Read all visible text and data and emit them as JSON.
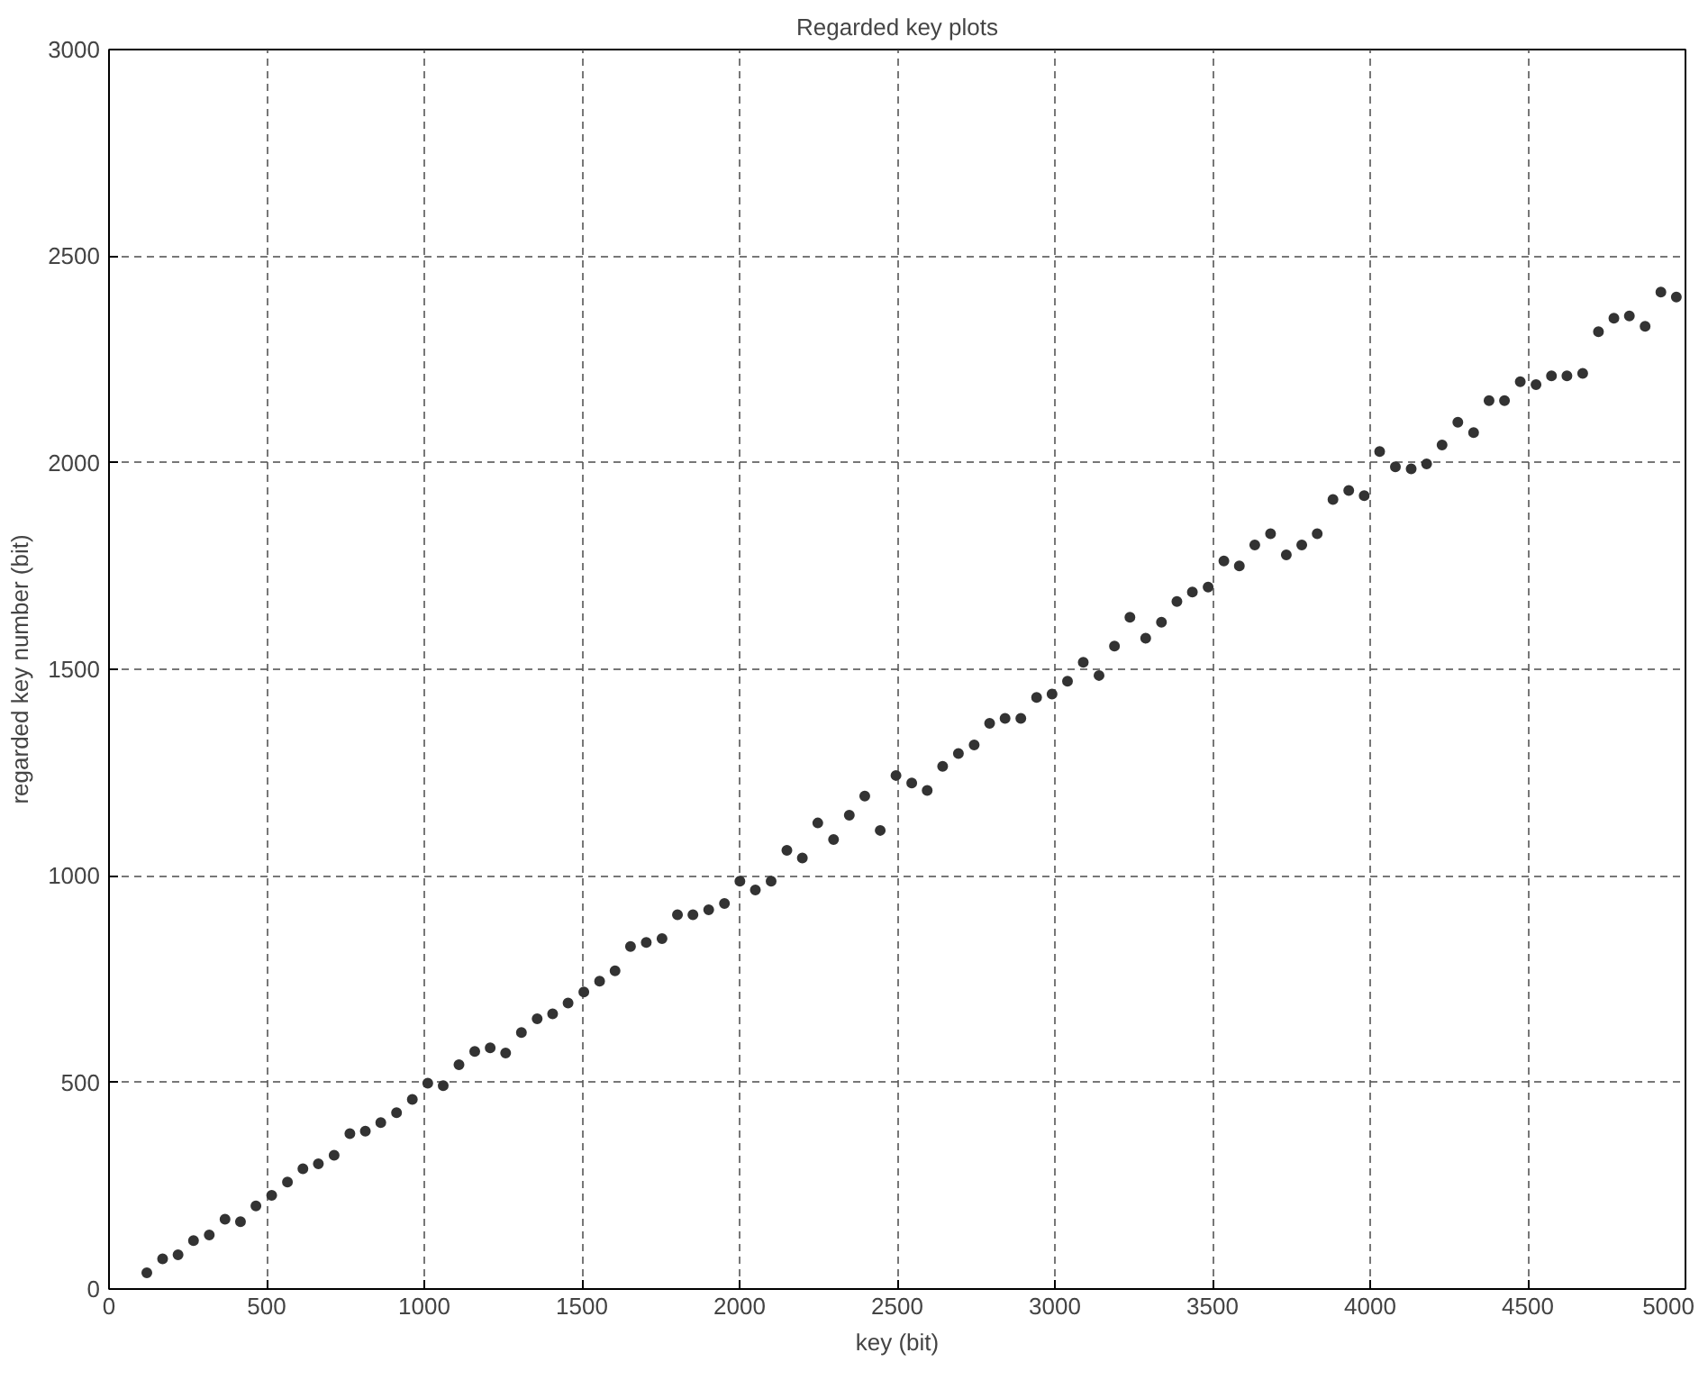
{
  "chart_data": {
    "type": "scatter",
    "title": "Regarded key plots",
    "xlabel": "key (bit)",
    "ylabel": "regarded key number (bit)",
    "x": [
      120,
      170,
      219,
      268,
      318,
      368,
      417,
      466,
      516,
      566,
      615,
      664,
      714,
      764,
      813,
      862,
      912,
      962,
      1011,
      1060,
      1110,
      1160,
      1209,
      1258,
      1308,
      1358,
      1407,
      1456,
      1506,
      1556,
      1605,
      1654,
      1704,
      1754,
      1803,
      1852,
      1902,
      1952,
      2001,
      2050,
      2100,
      2150,
      2199,
      2248,
      2298,
      2348,
      2397,
      2446,
      2496,
      2546,
      2595,
      2644,
      2694,
      2744,
      2793,
      2842,
      2892,
      2942,
      2991,
      3040,
      3090,
      3140,
      3189,
      3238,
      3288,
      3338,
      3387,
      3436,
      3486,
      3536,
      3585,
      3634,
      3684,
      3734,
      3783,
      3832,
      3882,
      3932,
      3981,
      4030,
      4080,
      4130,
      4179,
      4228,
      4278,
      4328,
      4377,
      4426,
      4476,
      4526,
      4575,
      4624,
      4674,
      4724,
      4773,
      4822,
      4872,
      4922,
      4971
    ],
    "series": [
      {
        "color": "#333333",
        "values": [
          39,
          73,
          83,
          117,
          131,
          169,
          163,
          201,
          227,
          259,
          291,
          303,
          324,
          376,
          382,
          403,
          427,
          459,
          498,
          492,
          543,
          575,
          584,
          571,
          621,
          654,
          666,
          692,
          719,
          745,
          770,
          829,
          839,
          848,
          906,
          906,
          918,
          933,
          987,
          966,
          987,
          1062,
          1043,
          1128,
          1088,
          1147,
          1193,
          1110,
          1243,
          1225,
          1207,
          1265,
          1296,
          1317,
          1369,
          1381,
          1381,
          1432,
          1440,
          1471,
          1517,
          1485,
          1556,
          1626,
          1575,
          1614,
          1664,
          1687,
          1699,
          1762,
          1750,
          1801,
          1828,
          1777,
          1801,
          1828,
          1911,
          1933,
          1920,
          2027,
          1990,
          1985,
          1997,
          2043,
          2098,
          2073,
          2150,
          2150,
          2196,
          2189,
          2210,
          2210,
          2216,
          2317,
          2350,
          2355,
          2330,
          2413,
          2401
        ]
      }
    ],
    "xlim": [
      0,
      5000
    ],
    "xticks": [
      0,
      500,
      1000,
      1500,
      2000,
      2500,
      3000,
      3500,
      4000,
      4500,
      5000
    ],
    "ylim": [
      0,
      3000
    ],
    "yticks": [
      0,
      500,
      1000,
      1500,
      2000,
      2500,
      3000
    ],
    "grid": true,
    "marker": "circle"
  }
}
